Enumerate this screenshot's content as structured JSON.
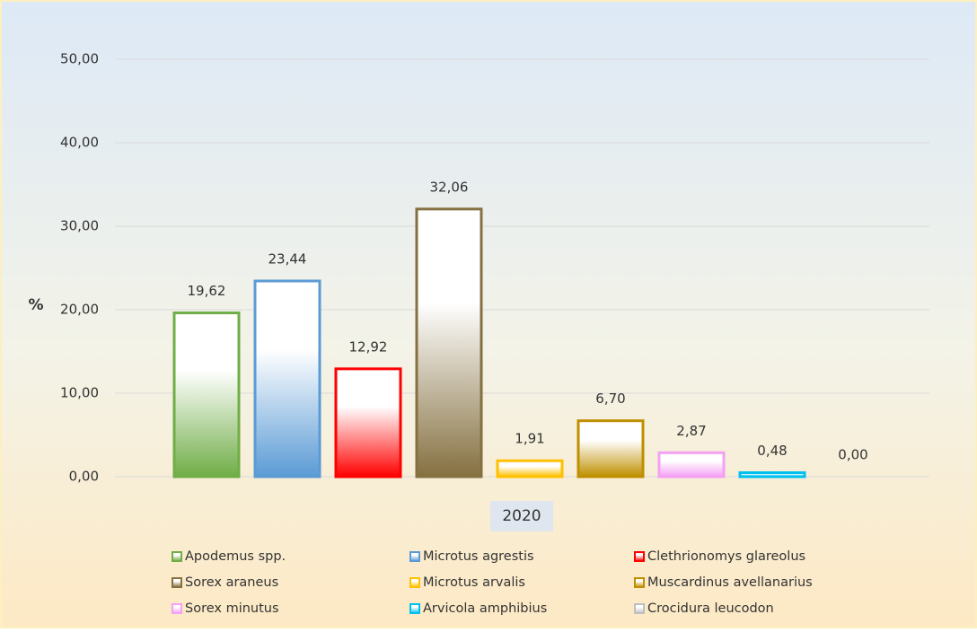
{
  "chart_data": {
    "type": "bar",
    "y_label": "%",
    "categories": [
      "2020"
    ],
    "series": [
      {
        "name": "Apodemus spp.",
        "color": "#70ad47",
        "values": [
          19.62
        ],
        "value_labels": [
          "19,62"
        ]
      },
      {
        "name": "Microtus agrestis",
        "color": "#5b9bd5",
        "values": [
          23.44
        ],
        "value_labels": [
          "23,44"
        ]
      },
      {
        "name": "Clethrionomys glareolus",
        "color": "#ff0000",
        "values": [
          12.92
        ],
        "value_labels": [
          "12,92"
        ]
      },
      {
        "name": "Sorex araneus",
        "color": "#857040",
        "values": [
          32.06
        ],
        "value_labels": [
          "32,06"
        ]
      },
      {
        "name": "Microtus arvalis",
        "color": "#ffc000",
        "values": [
          1.91
        ],
        "value_labels": [
          "1,91"
        ]
      },
      {
        "name": "Muscardinus avellanarius",
        "color": "#bf8f00",
        "values": [
          6.7
        ],
        "value_labels": [
          "6,70"
        ]
      },
      {
        "name": "Sorex minutus",
        "color": "#f4a0f4",
        "values": [
          2.87
        ],
        "value_labels": [
          "2,87"
        ]
      },
      {
        "name": "Arvicola amphibius",
        "color": "#00c0f0",
        "values": [
          0.48
        ],
        "value_labels": [
          "0,48"
        ]
      },
      {
        "name": "Crocidura leucodon",
        "color": "#bfbfbf",
        "values": [
          0.0
        ],
        "value_labels": [
          "0,00"
        ]
      }
    ],
    "ylim": [
      0,
      50
    ],
    "yticks": [
      {
        "value": 0,
        "label": "0,00"
      },
      {
        "value": 10,
        "label": "10,00"
      },
      {
        "value": 20,
        "label": "20,00"
      },
      {
        "value": 30,
        "label": "30,00"
      },
      {
        "value": 40,
        "label": "40,00"
      },
      {
        "value": 50,
        "label": "50,00"
      }
    ],
    "grid": true,
    "legend": "bottom"
  }
}
